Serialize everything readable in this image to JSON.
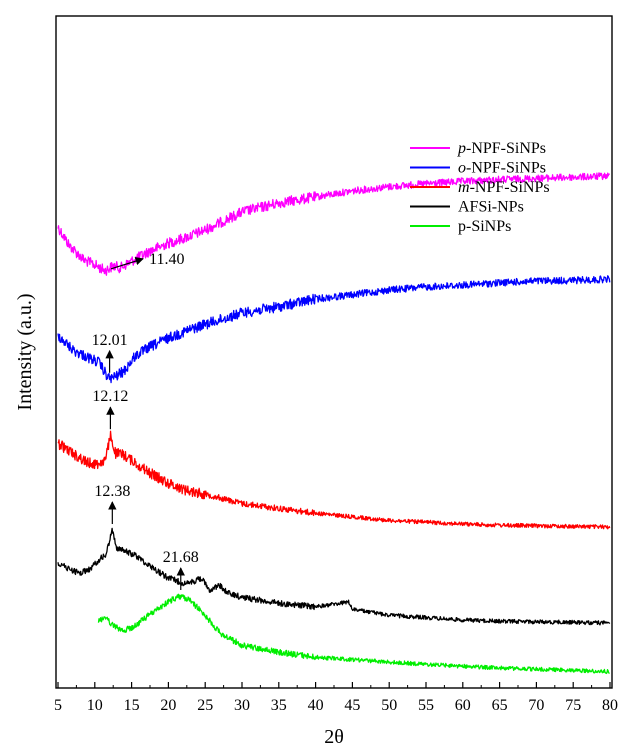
{
  "chart_data": {
    "type": "line",
    "xlabel": "2θ",
    "ylabel": "Intensity (a.u.)",
    "xlim": [
      5,
      80
    ],
    "x_ticks": [
      "5",
      "10",
      "15",
      "20",
      "25",
      "30",
      "35",
      "40",
      "45",
      "50",
      "55",
      "60",
      "65",
      "70",
      "75",
      "80"
    ],
    "y_ticks": "none",
    "grid": false,
    "legend_position": "upper-right",
    "series": [
      {
        "name": "p-NPF-SiNPs",
        "name_prefix": "p",
        "name_rest": "-NPF-SiNPs",
        "italic_prefix": true,
        "color": "#ff00ff",
        "peak": "11.40",
        "points": [
          [
            5,
            745
          ],
          [
            6.5,
            715
          ],
          [
            8.5,
            690
          ],
          [
            10,
            682
          ],
          [
            11.4,
            672
          ],
          [
            12.5,
            680
          ],
          [
            13.5,
            677
          ],
          [
            15,
            688
          ],
          [
            17.5,
            705
          ],
          [
            20,
            718
          ],
          [
            22.5,
            728
          ],
          [
            25,
            740
          ],
          [
            27.5,
            755
          ],
          [
            30,
            770
          ],
          [
            35,
            785
          ],
          [
            40,
            795
          ],
          [
            45,
            805
          ],
          [
            50,
            812
          ],
          [
            55,
            817
          ],
          [
            60,
            821
          ],
          [
            65,
            824
          ],
          [
            70,
            826
          ],
          [
            75,
            828
          ],
          [
            80,
            830
          ]
        ]
      },
      {
        "name": "o-NPF-SiNPs",
        "name_prefix": "o",
        "name_rest": "-NPF-SiNPs",
        "italic_prefix": true,
        "color": "#0000ff",
        "peak": "12.01",
        "points": [
          [
            5,
            565
          ],
          [
            7,
            540
          ],
          [
            9.5,
            525
          ],
          [
            10.5,
            520
          ],
          [
            11.5,
            500
          ],
          [
            12,
            492
          ],
          [
            13,
            497
          ],
          [
            14,
            505
          ],
          [
            15.5,
            530
          ],
          [
            17.5,
            545
          ],
          [
            20,
            560
          ],
          [
            22.5,
            572
          ],
          [
            25,
            583
          ],
          [
            27.5,
            592
          ],
          [
            30,
            602
          ],
          [
            35,
            612
          ],
          [
            40,
            625
          ],
          [
            45,
            632
          ],
          [
            50,
            640
          ],
          [
            55,
            645
          ],
          [
            60,
            648
          ],
          [
            65,
            652
          ],
          [
            70,
            655
          ],
          [
            75,
            656
          ],
          [
            80,
            658
          ]
        ]
      },
      {
        "name": "m-NPF-SiNPs",
        "name_prefix": "m",
        "name_rest": "-NPF-SiNPs",
        "italic_prefix": true,
        "color": "#ff0000",
        "peak": "12.12",
        "points": [
          [
            5,
            384
          ],
          [
            7,
            368
          ],
          [
            9,
            352
          ],
          [
            10.5,
            350
          ],
          [
            11.5,
            358
          ],
          [
            12.12,
            398
          ],
          [
            12.8,
            368
          ],
          [
            14,
            365
          ],
          [
            15.5,
            352
          ],
          [
            17.5,
            335
          ],
          [
            20,
            318
          ],
          [
            22.5,
            306
          ],
          [
            25,
            300
          ],
          [
            27.5,
            292
          ],
          [
            30,
            284
          ],
          [
            35,
            276
          ],
          [
            40,
            268
          ],
          [
            45,
            262
          ],
          [
            50,
            256
          ],
          [
            55,
            253
          ],
          [
            60,
            250
          ],
          [
            65,
            248
          ],
          [
            70,
            247
          ],
          [
            75,
            246
          ],
          [
            80,
            245
          ]
        ]
      },
      {
        "name": "AFSi-NPs",
        "name_prefix": "",
        "name_rest": "AFSi-NPs",
        "italic_prefix": false,
        "color": "#000000",
        "peak": "12.38",
        "points": [
          [
            5,
            185
          ],
          [
            6.5,
            175
          ],
          [
            8,
            168
          ],
          [
            9.5,
            176
          ],
          [
            10.5,
            190
          ],
          [
            11.5,
            198
          ],
          [
            12.38,
            240
          ],
          [
            13,
            210
          ],
          [
            14,
            205
          ],
          [
            15.5,
            198
          ],
          [
            17.5,
            180
          ],
          [
            20,
            160
          ],
          [
            22.5,
            150
          ],
          [
            24.5,
            160
          ],
          [
            25.5,
            140
          ],
          [
            27,
            148
          ],
          [
            28,
            135
          ],
          [
            30,
            128
          ],
          [
            35,
            118
          ],
          [
            40,
            112
          ],
          [
            44.5,
            120
          ],
          [
            45,
            108
          ],
          [
            50,
            98
          ],
          [
            55,
            94
          ],
          [
            60,
            90
          ],
          [
            65,
            88
          ],
          [
            70,
            87
          ],
          [
            75,
            86
          ],
          [
            80,
            85
          ]
        ]
      },
      {
        "name": "p-SiNPs",
        "name_prefix": "",
        "name_rest": "p-SiNPs",
        "italic_prefix": false,
        "color": "#00ee00",
        "peak": "21.68",
        "points": [
          [
            10.5,
            90
          ],
          [
            11.5,
            92
          ],
          [
            12.5,
            80
          ],
          [
            14,
            72
          ],
          [
            15.5,
            80
          ],
          [
            17,
            95
          ],
          [
            19,
            112
          ],
          [
            20.5,
            124
          ],
          [
            21.68,
            130
          ],
          [
            23,
            122
          ],
          [
            25,
            98
          ],
          [
            27,
            68
          ],
          [
            30,
            48
          ],
          [
            35,
            36
          ],
          [
            40,
            28
          ],
          [
            45,
            24
          ],
          [
            50,
            20
          ],
          [
            55,
            16
          ],
          [
            60,
            13
          ],
          [
            65,
            10
          ],
          [
            70,
            8
          ],
          [
            75,
            6
          ],
          [
            80,
            4
          ]
        ]
      }
    ],
    "annotations": [
      {
        "label": "11.40",
        "series": 0
      },
      {
        "label": "12.01",
        "series": 1
      },
      {
        "label": "12.12",
        "series": 2
      },
      {
        "label": "12.38",
        "series": 3
      },
      {
        "label": "21.68",
        "series": 4
      }
    ]
  }
}
